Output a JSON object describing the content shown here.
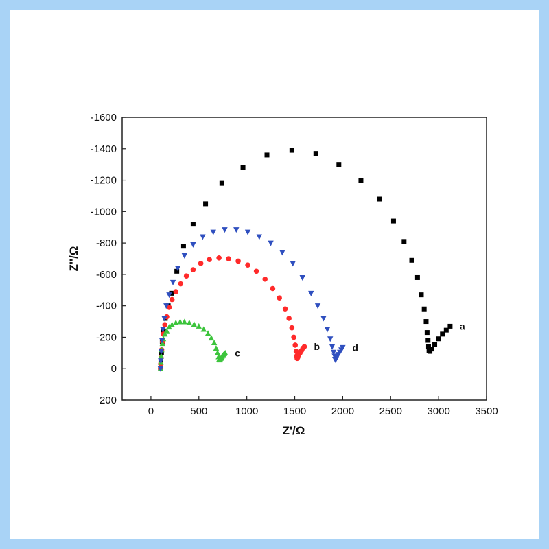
{
  "chart_data": {
    "type": "scatter",
    "xlabel": "Z'/Ω",
    "ylabel": "Z''/Ω",
    "xlim": [
      -300,
      3500
    ],
    "ylim": [
      200,
      -1600
    ],
    "y_inverted": true,
    "xticks": [
      0,
      500,
      1000,
      1500,
      2000,
      2500,
      3000,
      3500
    ],
    "yticks": [
      -1600,
      -1400,
      -1200,
      -1000,
      -800,
      -600,
      -400,
      -200,
      0,
      200
    ],
    "grid": false,
    "series": [
      {
        "name": "a",
        "color": "#000000",
        "marker": "square",
        "x": [
          100,
          104,
          110,
          118,
          130,
          150,
          180,
          215,
          270,
          340,
          440,
          570,
          740,
          960,
          1210,
          1470,
          1720,
          1960,
          2190,
          2380,
          2530,
          2640,
          2720,
          2780,
          2820,
          2850,
          2870,
          2880,
          2890,
          2895,
          2900,
          2910,
          2930,
          2960,
          3000,
          3040,
          3080,
          3120
        ],
        "y": [
          0,
          -40,
          -100,
          -170,
          -240,
          -320,
          -400,
          -480,
          -620,
          -780,
          -920,
          -1050,
          -1180,
          -1280,
          -1360,
          -1390,
          -1370,
          -1300,
          -1200,
          -1080,
          -940,
          -810,
          -690,
          -580,
          -470,
          -380,
          -300,
          -230,
          -180,
          -140,
          -115,
          -110,
          -125,
          -155,
          -190,
          -220,
          -245,
          -270
        ]
      },
      {
        "name": "b",
        "color": "#ff2a2a",
        "marker": "circle",
        "x": [
          100,
          102,
          106,
          112,
          120,
          130,
          145,
          165,
          190,
          220,
          260,
          310,
          370,
          440,
          520,
          610,
          710,
          810,
          910,
          1010,
          1100,
          1190,
          1270,
          1340,
          1400,
          1440,
          1470,
          1490,
          1505,
          1515,
          1520,
          1525,
          1530,
          1540,
          1555,
          1570,
          1585,
          1600
        ],
        "y": [
          0,
          -30,
          -70,
          -120,
          -170,
          -220,
          -280,
          -330,
          -390,
          -440,
          -490,
          -540,
          -590,
          -630,
          -670,
          -695,
          -705,
          -700,
          -685,
          -660,
          -620,
          -570,
          -510,
          -450,
          -380,
          -320,
          -260,
          -200,
          -150,
          -110,
          -80,
          -65,
          -70,
          -85,
          -100,
          -115,
          -130,
          -140
        ]
      },
      {
        "name": "c",
        "color": "#3cc43c",
        "marker": "triangle-up",
        "x": [
          100,
          103,
          107,
          112,
          120,
          130,
          145,
          165,
          190,
          220,
          260,
          305,
          350,
          400,
          450,
          500,
          550,
          595,
          630,
          660,
          680,
          695,
          705,
          712,
          718,
          722,
          728,
          735,
          745,
          755,
          765,
          775
        ],
        "y": [
          0,
          -40,
          -80,
          -120,
          -160,
          -190,
          -220,
          -240,
          -265,
          -280,
          -292,
          -298,
          -298,
          -292,
          -282,
          -270,
          -250,
          -225,
          -195,
          -165,
          -130,
          -100,
          -75,
          -60,
          -55,
          -58,
          -65,
          -72,
          -80,
          -88,
          -95,
          -100
        ]
      },
      {
        "name": "d",
        "color": "#2f4fbf",
        "marker": "triangle-down",
        "x": [
          100,
          103,
          108,
          115,
          125,
          140,
          160,
          190,
          230,
          280,
          350,
          440,
          540,
          650,
          770,
          890,
          1010,
          1130,
          1250,
          1370,
          1480,
          1580,
          1670,
          1740,
          1800,
          1840,
          1870,
          1890,
          1905,
          1915,
          1920,
          1925,
          1930,
          1940,
          1955,
          1970,
          1985,
          2000
        ],
        "y": [
          0,
          -50,
          -110,
          -180,
          -250,
          -320,
          -400,
          -470,
          -550,
          -640,
          -720,
          -790,
          -840,
          -870,
          -885,
          -885,
          -870,
          -840,
          -800,
          -740,
          -670,
          -580,
          -480,
          -400,
          -320,
          -250,
          -190,
          -140,
          -105,
          -80,
          -60,
          -55,
          -60,
          -75,
          -90,
          -105,
          -120,
          -135
        ]
      }
    ]
  }
}
